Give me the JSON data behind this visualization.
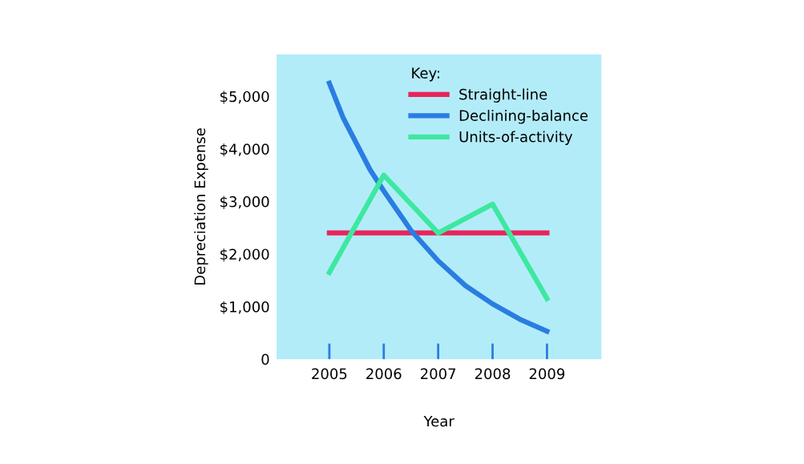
{
  "chart_data": {
    "type": "line",
    "x": [
      2005,
      2006,
      2007,
      2008,
      2009
    ],
    "series": [
      {
        "name": "Straight-line",
        "color": "#e8245a",
        "values": [
          2400,
          2400,
          2400,
          2400,
          2400
        ]
      },
      {
        "name": "Declining-balance",
        "color": "#2a7de1",
        "x": [
          2005,
          2005.25,
          2005.5,
          2005.75,
          2006,
          2006.5,
          2007,
          2007.5,
          2008,
          2008.5,
          2009
        ],
        "values": [
          5250,
          4600,
          4100,
          3600,
          3200,
          2450,
          1870,
          1400,
          1050,
          760,
          530
        ]
      },
      {
        "name": "Units-of-activity",
        "color": "#3de8a0",
        "values": [
          1650,
          3500,
          2400,
          2950,
          1150
        ]
      }
    ],
    "xlabel": "Year",
    "ylabel": "Depreciation Expense",
    "legend_title": "Key:",
    "xlim": [
      2004.03,
      2010.0
    ],
    "xticks": [
      2005,
      2006,
      2007,
      2008,
      2009
    ],
    "ylim": [
      0,
      5800
    ],
    "yticks": [
      {
        "value": 0,
        "label": "0"
      },
      {
        "value": 1000,
        "label": "$1,000"
      },
      {
        "value": 2000,
        "label": "$2,000"
      },
      {
        "value": 3000,
        "label": "$3,000"
      },
      {
        "value": 4000,
        "label": "$4,000"
      },
      {
        "value": 5000,
        "label": "$5,000"
      }
    ],
    "legend": "top right",
    "grid": false,
    "marker": "none",
    "line_style": "solid"
  }
}
